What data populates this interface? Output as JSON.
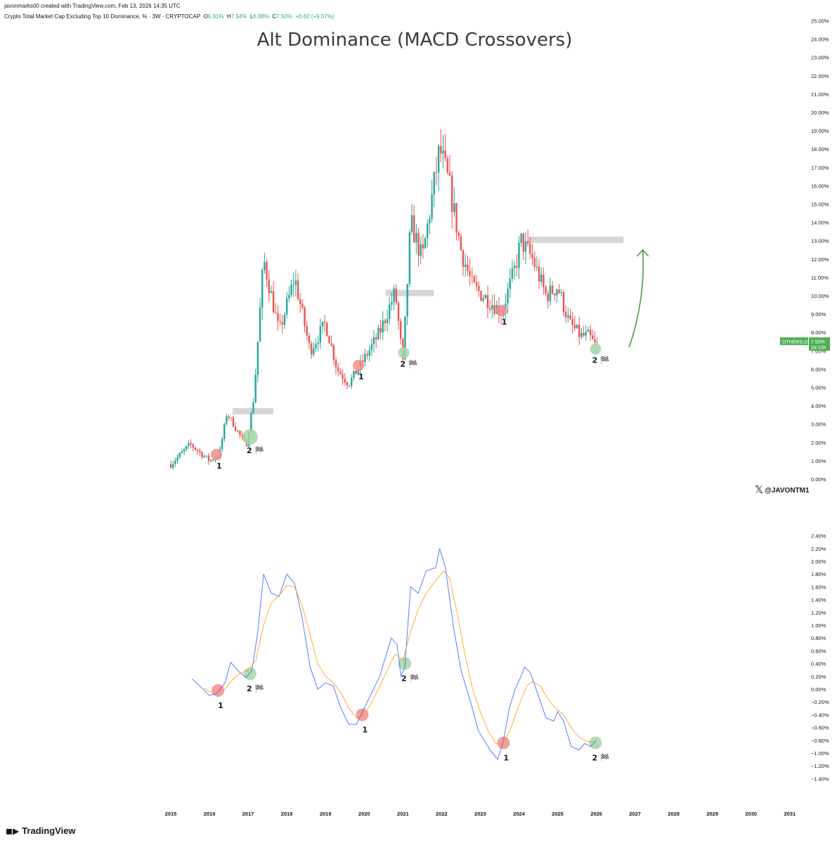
{
  "header": {
    "credit": "javonmarks00 created with TradingView.com, Feb 13, 2026 14:35 UTC",
    "symbol": "Crypto Total Market Cap Excluding Top 10 Dominance, % · 3W · CRYPTOCAP",
    "open_label": "O",
    "open": "6.91%",
    "high_label": "H",
    "high": "7.54%",
    "low_label": "L",
    "low": "6.88%",
    "close_label": "C",
    "close": "7.50%",
    "change": "+0.62 (+9.07%)"
  },
  "title": "Alt Dominance (MACD Crossovers)",
  "watermark": "@JAVONTM1",
  "footer_brand": "TradingView",
  "colors": {
    "up": "#26a69a",
    "down": "#ef5350",
    "macd": "#2962ff",
    "signal": "#ff9800",
    "bear_marker": "#f58c8c",
    "bull_marker": "#a5d6a7",
    "arrow": "#43a047",
    "zone": "#d6d6d6"
  },
  "chart_data": [
    {
      "type": "candlestick",
      "series_name": "OTHERS.D",
      "price_tag": "7.50%",
      "countdown": "2d 10h",
      "y_ticks": [
        "0.00%",
        "1.00%",
        "2.00%",
        "3.00%",
        "4.00%",
        "5.00%",
        "6.00%",
        "7.00%",
        "8.00%",
        "9.00%",
        "10.00%",
        "11.00%",
        "12.00%",
        "13.00%",
        "14.00%",
        "15.00%",
        "16.00%",
        "17.00%",
        "18.00%",
        "19.00%",
        "20.00%",
        "21.00%",
        "22.00%",
        "23.00%",
        "24.00%",
        "25.00%"
      ],
      "ylim": [
        0,
        25
      ],
      "trend": [
        {
          "x": 2015.0,
          "y": 0.8
        },
        {
          "x": 2015.5,
          "y": 1.9
        },
        {
          "x": 2016.0,
          "y": 1.0
        },
        {
          "x": 2016.25,
          "y": 1.3
        },
        {
          "x": 2016.45,
          "y": 3.6
        },
        {
          "x": 2016.95,
          "y": 1.8
        },
        {
          "x": 2017.15,
          "y": 4.5
        },
        {
          "x": 2017.4,
          "y": 12.0
        },
        {
          "x": 2017.8,
          "y": 8.0
        },
        {
          "x": 2018.2,
          "y": 11.0
        },
        {
          "x": 2018.6,
          "y": 7.0
        },
        {
          "x": 2019.0,
          "y": 8.5
        },
        {
          "x": 2019.3,
          "y": 6.0
        },
        {
          "x": 2019.6,
          "y": 5.2
        },
        {
          "x": 2019.9,
          "y": 6.2
        },
        {
          "x": 2020.4,
          "y": 8.0
        },
        {
          "x": 2020.8,
          "y": 10.2
        },
        {
          "x": 2021.0,
          "y": 6.3
        },
        {
          "x": 2021.2,
          "y": 14.0
        },
        {
          "x": 2021.5,
          "y": 12.0
        },
        {
          "x": 2021.95,
          "y": 18.0
        },
        {
          "x": 2022.2,
          "y": 16.0
        },
        {
          "x": 2022.5,
          "y": 12.5
        },
        {
          "x": 2022.8,
          "y": 10.5
        },
        {
          "x": 2023.3,
          "y": 9.6
        },
        {
          "x": 2023.55,
          "y": 9.1
        },
        {
          "x": 2023.9,
          "y": 11.5
        },
        {
          "x": 2024.05,
          "y": 13.0
        },
        {
          "x": 2024.35,
          "y": 12.0
        },
        {
          "x": 2024.7,
          "y": 10.0
        },
        {
          "x": 2025.0,
          "y": 10.5
        },
        {
          "x": 2025.3,
          "y": 8.5
        },
        {
          "x": 2025.6,
          "y": 7.8
        },
        {
          "x": 2025.8,
          "y": 7.8
        },
        {
          "x": 2026.0,
          "y": 7.2
        },
        {
          "x": 2026.05,
          "y": 7.5
        }
      ],
      "resistance_zones": [
        {
          "x_start": 2016.6,
          "x_end": 2017.65,
          "y": 3.7
        },
        {
          "x_start": 2020.55,
          "y": 10.15,
          "x_end": 2021.8
        },
        {
          "x_start": 2024.25,
          "x_end": 2026.7,
          "y": 13.05
        }
      ],
      "markers": [
        {
          "x": 2016.18,
          "y": 1.35,
          "kind": "bear",
          "label": "1"
        },
        {
          "x": 2017.05,
          "y": 2.3,
          "kind": "bull",
          "label": "2 🏁"
        },
        {
          "x": 2019.85,
          "y": 6.2,
          "kind": "bear",
          "label": "1"
        },
        {
          "x": 2021.02,
          "y": 6.9,
          "kind": "bull",
          "label": "2 🏁"
        },
        {
          "x": 2023.55,
          "y": 9.2,
          "kind": "bear",
          "label": "1"
        },
        {
          "x": 2025.98,
          "y": 7.1,
          "kind": "bull",
          "label": "2 🏁"
        }
      ],
      "projection_arrow": {
        "from": {
          "x": 2026.85,
          "y": 7.2
        },
        "to": {
          "x": 2027.2,
          "y": 12.5
        }
      }
    },
    {
      "type": "line",
      "y_ticks": [
        "2.40%",
        "2.20%",
        "2.00%",
        "1.80%",
        "1.60%",
        "1.40%",
        "1.20%",
        "1.00%",
        "0.80%",
        "0.60%",
        "0.40%",
        "0.20%",
        "0.00%",
        "−0.20%",
        "−0.40%",
        "−0.60%",
        "−0.80%",
        "−1.00%",
        "−1.20%",
        "−1.40%"
      ],
      "ylim": [
        -1.4,
        2.4
      ],
      "series": [
        {
          "role": "macd",
          "points": [
            [
              2015.55,
              0.16
            ],
            [
              2015.8,
              0.02
            ],
            [
              2016.0,
              -0.1
            ],
            [
              2016.2,
              -0.06
            ],
            [
              2016.4,
              0.1
            ],
            [
              2016.55,
              0.42
            ],
            [
              2016.75,
              0.28
            ],
            [
              2016.95,
              0.18
            ],
            [
              2017.1,
              0.3
            ],
            [
              2017.25,
              0.9
            ],
            [
              2017.4,
              1.8
            ],
            [
              2017.6,
              1.5
            ],
            [
              2017.8,
              1.45
            ],
            [
              2018.0,
              1.8
            ],
            [
              2018.2,
              1.65
            ],
            [
              2018.4,
              1.1
            ],
            [
              2018.6,
              0.35
            ],
            [
              2018.8,
              0.0
            ],
            [
              2019.0,
              0.1
            ],
            [
              2019.2,
              0.05
            ],
            [
              2019.4,
              -0.3
            ],
            [
              2019.6,
              -0.55
            ],
            [
              2019.8,
              -0.55
            ],
            [
              2020.0,
              -0.3
            ],
            [
              2020.2,
              -0.05
            ],
            [
              2020.4,
              0.2
            ],
            [
              2020.6,
              0.6
            ],
            [
              2020.7,
              0.8
            ],
            [
              2020.85,
              0.7
            ],
            [
              2020.95,
              0.2
            ],
            [
              2021.05,
              0.35
            ],
            [
              2021.2,
              1.6
            ],
            [
              2021.4,
              1.5
            ],
            [
              2021.6,
              1.85
            ],
            [
              2021.85,
              1.9
            ],
            [
              2021.95,
              2.2
            ],
            [
              2022.1,
              1.9
            ],
            [
              2022.3,
              1.0
            ],
            [
              2022.5,
              0.3
            ],
            [
              2022.75,
              -0.2
            ],
            [
              2022.95,
              -0.65
            ],
            [
              2023.1,
              -0.8
            ],
            [
              2023.25,
              -0.95
            ],
            [
              2023.45,
              -1.1
            ],
            [
              2023.6,
              -0.8
            ],
            [
              2023.75,
              -0.3
            ],
            [
              2023.9,
              0.0
            ],
            [
              2024.05,
              0.2
            ],
            [
              2024.15,
              0.35
            ],
            [
              2024.3,
              0.25
            ],
            [
              2024.5,
              -0.1
            ],
            [
              2024.7,
              -0.45
            ],
            [
              2024.9,
              -0.5
            ],
            [
              2025.0,
              -0.35
            ],
            [
              2025.15,
              -0.5
            ],
            [
              2025.35,
              -0.9
            ],
            [
              2025.55,
              -0.95
            ],
            [
              2025.7,
              -0.85
            ],
            [
              2025.85,
              -0.9
            ],
            [
              2026.0,
              -0.8
            ]
          ]
        },
        {
          "role": "signal",
          "points": [
            [
              2015.85,
              0.02
            ],
            [
              2016.0,
              -0.04
            ],
            [
              2016.2,
              -0.05
            ],
            [
              2016.4,
              0.0
            ],
            [
              2016.6,
              0.15
            ],
            [
              2016.8,
              0.25
            ],
            [
              2017.0,
              0.3
            ],
            [
              2017.2,
              0.45
            ],
            [
              2017.4,
              1.0
            ],
            [
              2017.6,
              1.35
            ],
            [
              2017.85,
              1.5
            ],
            [
              2018.0,
              1.62
            ],
            [
              2018.2,
              1.6
            ],
            [
              2018.4,
              1.3
            ],
            [
              2018.6,
              0.85
            ],
            [
              2018.8,
              0.4
            ],
            [
              2019.0,
              0.2
            ],
            [
              2019.2,
              0.1
            ],
            [
              2019.4,
              -0.05
            ],
            [
              2019.6,
              -0.3
            ],
            [
              2019.8,
              -0.45
            ],
            [
              2020.0,
              -0.4
            ],
            [
              2020.2,
              -0.2
            ],
            [
              2020.4,
              0.05
            ],
            [
              2020.6,
              0.3
            ],
            [
              2020.8,
              0.55
            ],
            [
              2021.0,
              0.45
            ],
            [
              2021.2,
              0.9
            ],
            [
              2021.4,
              1.25
            ],
            [
              2021.6,
              1.5
            ],
            [
              2021.85,
              1.7
            ],
            [
              2022.05,
              1.85
            ],
            [
              2022.2,
              1.75
            ],
            [
              2022.4,
              1.2
            ],
            [
              2022.6,
              0.55
            ],
            [
              2022.8,
              0.0
            ],
            [
              2023.0,
              -0.35
            ],
            [
              2023.2,
              -0.65
            ],
            [
              2023.4,
              -0.85
            ],
            [
              2023.6,
              -0.85
            ],
            [
              2023.8,
              -0.6
            ],
            [
              2024.0,
              -0.25
            ],
            [
              2024.2,
              0.05
            ],
            [
              2024.35,
              0.12
            ],
            [
              2024.55,
              0.05
            ],
            [
              2024.75,
              -0.15
            ],
            [
              2024.95,
              -0.3
            ],
            [
              2025.15,
              -0.4
            ],
            [
              2025.35,
              -0.6
            ],
            [
              2025.55,
              -0.75
            ],
            [
              2025.75,
              -0.82
            ],
            [
              2026.0,
              -0.82
            ]
          ]
        }
      ],
      "markers": [
        {
          "x": 2016.22,
          "y": -0.02,
          "kind": "bear",
          "label": "1"
        },
        {
          "x": 2017.05,
          "y": 0.24,
          "kind": "bull",
          "label": "2 🏁"
        },
        {
          "x": 2019.95,
          "y": -0.4,
          "kind": "bear",
          "label": "1"
        },
        {
          "x": 2021.05,
          "y": 0.4,
          "kind": "bull",
          "label": "2 🏁"
        },
        {
          "x": 2023.6,
          "y": -0.84,
          "kind": "bear",
          "label": "1"
        },
        {
          "x": 2025.98,
          "y": -0.84,
          "kind": "bull",
          "label": "2 🏁"
        }
      ]
    }
  ],
  "x_axis": {
    "ticks": [
      "2015",
      "2016",
      "2017",
      "2018",
      "2019",
      "2020",
      "2021",
      "2022",
      "2023",
      "2024",
      "2025",
      "2026",
      "2027",
      "2028",
      "2029",
      "2030",
      "2031"
    ]
  }
}
